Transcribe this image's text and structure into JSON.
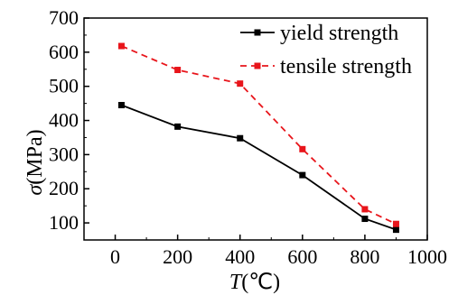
{
  "chart_data": {
    "type": "line",
    "title": "",
    "xlabel_symbol": "T",
    "xlabel_unit": "(℃)",
    "ylabel_symbol": "σ",
    "ylabel_unit": "(MPa)",
    "xlim": [
      -100,
      1000
    ],
    "ylim": [
      50,
      700
    ],
    "xticks": [
      0,
      200,
      400,
      600,
      800,
      1000
    ],
    "yticks": [
      100,
      200,
      300,
      400,
      500,
      600,
      700
    ],
    "grid": false,
    "legend_position": "top-right",
    "series": [
      {
        "name": "yield strength",
        "color": "#000000",
        "line_style": "solid",
        "marker": "square",
        "x": [
          20,
          200,
          400,
          600,
          800,
          900
        ],
        "y": [
          445,
          382,
          348,
          240,
          112,
          80
        ]
      },
      {
        "name": "tensile strength",
        "color": "#e8151b",
        "line_style": "dashed",
        "marker": "square",
        "x": [
          20,
          200,
          400,
          600,
          800,
          900
        ],
        "y": [
          618,
          548,
          508,
          316,
          140,
          97
        ]
      }
    ]
  }
}
